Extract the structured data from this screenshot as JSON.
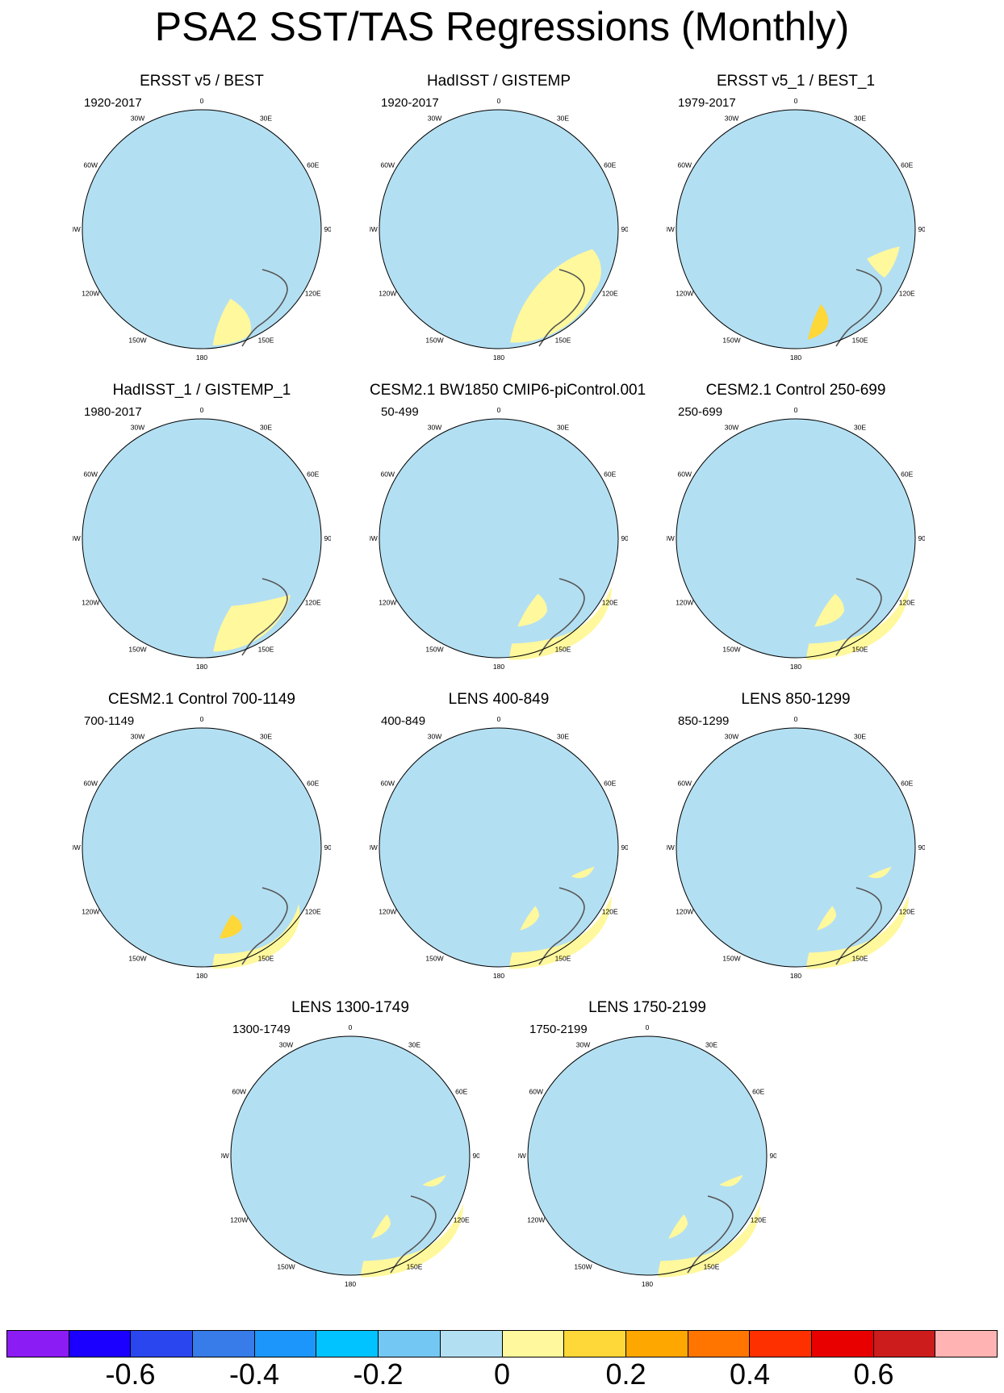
{
  "title": "PSA2 SST/TAS Regressions (Monthly)",
  "colors": {
    "land": "#ffffff",
    "coast": "#555555",
    "lon_labels_color": "#000000"
  },
  "lon_labels": {
    "0": "0",
    "30E": "30E",
    "60E": "60E",
    "90E": "90E",
    "120E": "120E",
    "150E": "150E",
    "180": "180",
    "150W": "150W",
    "120W": "120W",
    "90W": "90W",
    "60W": "60W",
    "30W": "30W"
  },
  "panels": [
    {
      "title": "ERSST v5 / BEST",
      "period": "1920-2017",
      "pattern": "obs_a"
    },
    {
      "title": "HadISST / GISTEMP",
      "period": "1920-2017",
      "pattern": "obs_b"
    },
    {
      "title": "ERSST v5_1 / BEST_1",
      "period": "1979-2017",
      "pattern": "obs_c"
    },
    {
      "title": "HadISST_1 / GISTEMP_1",
      "period": "1980-2017",
      "pattern": "obs_d"
    },
    {
      "title": "CESM2.1 BW1850 CMIP6-piControl.001",
      "period": "50-499",
      "pattern": "model"
    },
    {
      "title": "CESM2.1 Control 250-699",
      "period": "250-699",
      "pattern": "model"
    },
    {
      "title": "CESM2.1 Control 700-1149",
      "period": "700-1149",
      "pattern": "model_strong"
    },
    {
      "title": "LENS 400-849",
      "period": "400-849",
      "pattern": "lens"
    },
    {
      "title": "LENS 850-1299",
      "period": "850-1299",
      "pattern": "lens"
    },
    {
      "title": "LENS 1300-1749",
      "period": "1300-1749",
      "pattern": "lens"
    },
    {
      "title": "LENS 1750-2199",
      "period": "1750-2199",
      "pattern": "lens"
    }
  ],
  "colorbar": {
    "colors": [
      "#8b1cf4",
      "#1b00ff",
      "#2a47ef",
      "#377ce8",
      "#1c96fa",
      "#00c3ff",
      "#73c8f3",
      "#b3dff2",
      "#fff89d",
      "#fed738",
      "#fea700",
      "#ff7500",
      "#ff3000",
      "#e80000",
      "#cc1c1c",
      "#ffb3b3"
    ],
    "labels": [
      {
        "text": "-0.6",
        "boundary": 1
      },
      {
        "text": "-0.4",
        "boundary": 3
      },
      {
        "text": "-0.2",
        "boundary": 5
      },
      {
        "text": "0",
        "boundary": 7
      },
      {
        "text": "0.2",
        "boundary": 9
      },
      {
        "text": "0.4",
        "boundary": 11
      },
      {
        "text": "0.6",
        "boundary": 13
      }
    ]
  }
}
